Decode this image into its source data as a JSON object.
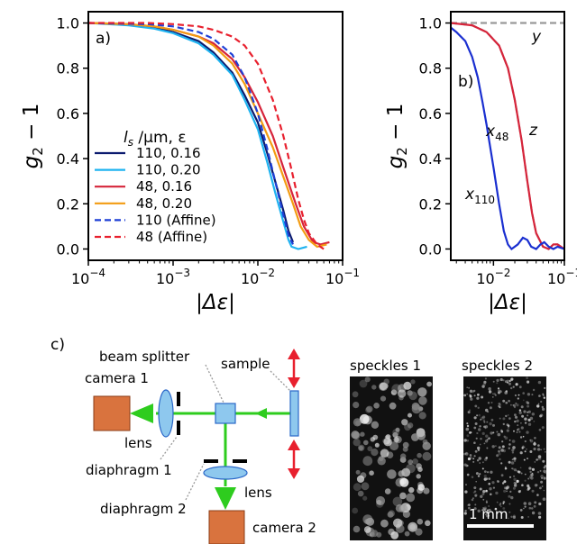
{
  "chart_data": [
    {
      "panel": "a)",
      "type": "line",
      "ylabel_main": "g",
      "ylabel_sub": "2",
      "ylabel_tail": " − 1",
      "xlabel": "|Δε|",
      "xscale": "log",
      "xlim": [
        0.0001,
        0.1
      ],
      "ylim": [
        -0.05,
        1.05
      ],
      "x_ticks": [
        {
          "value": 0.0001,
          "exp": "−4"
        },
        {
          "value": 0.001,
          "exp": "−3"
        },
        {
          "value": 0.01,
          "exp": "−2"
        },
        {
          "value": 0.1,
          "exp": "−1"
        }
      ],
      "x_tick_base": "10",
      "y_ticks": [
        "0.0",
        "0.2",
        "0.4",
        "0.6",
        "0.8",
        "1.0"
      ],
      "legend_title": "l",
      "legend_title_sub": "s",
      "legend_title_rest": " /μm, ε",
      "legend_position": "lower-left",
      "series": [
        {
          "name": "110, 0.16",
          "color": "#0b1a6e",
          "dash": false,
          "points": [
            [
              0.0001,
              1.0
            ],
            [
              0.0003,
              0.995
            ],
            [
              0.0006,
              0.98
            ],
            [
              0.001,
              0.96
            ],
            [
              0.002,
              0.92
            ],
            [
              0.003,
              0.87
            ],
            [
              0.005,
              0.78
            ],
            [
              0.007,
              0.68
            ],
            [
              0.01,
              0.56
            ],
            [
              0.013,
              0.42
            ],
            [
              0.016,
              0.3
            ],
            [
              0.02,
              0.17
            ],
            [
              0.023,
              0.08
            ],
            [
              0.026,
              0.03
            ]
          ]
        },
        {
          "name": "110, 0.20",
          "color": "#1fb3f0",
          "dash": false,
          "points": [
            [
              0.0001,
              1.0
            ],
            [
              0.0003,
              0.99
            ],
            [
              0.0006,
              0.975
            ],
            [
              0.001,
              0.955
            ],
            [
              0.002,
              0.91
            ],
            [
              0.003,
              0.86
            ],
            [
              0.005,
              0.77
            ],
            [
              0.007,
              0.66
            ],
            [
              0.01,
              0.53
            ],
            [
              0.013,
              0.38
            ],
            [
              0.016,
              0.25
            ],
            [
              0.02,
              0.12
            ],
            [
              0.023,
              0.04
            ],
            [
              0.025,
              0.01
            ],
            [
              0.03,
              0.0
            ],
            [
              0.038,
              0.01
            ]
          ]
        },
        {
          "name": "48, 0.16",
          "color": "#d6243a",
          "dash": false,
          "points": [
            [
              0.0001,
              1.0
            ],
            [
              0.0003,
              0.995
            ],
            [
              0.0006,
              0.985
            ],
            [
              0.001,
              0.97
            ],
            [
              0.002,
              0.94
            ],
            [
              0.003,
              0.91
            ],
            [
              0.005,
              0.84
            ],
            [
              0.007,
              0.76
            ],
            [
              0.01,
              0.65
            ],
            [
              0.015,
              0.5
            ],
            [
              0.02,
              0.36
            ],
            [
              0.028,
              0.2
            ],
            [
              0.035,
              0.1
            ],
            [
              0.045,
              0.03
            ],
            [
              0.055,
              0.02
            ],
            [
              0.07,
              0.03
            ]
          ]
        },
        {
          "name": "48, 0.20",
          "color": "#f39c12",
          "dash": false,
          "points": [
            [
              0.0001,
              1.0
            ],
            [
              0.0003,
              0.995
            ],
            [
              0.0006,
              0.985
            ],
            [
              0.001,
              0.97
            ],
            [
              0.002,
              0.94
            ],
            [
              0.003,
              0.9
            ],
            [
              0.005,
              0.82
            ],
            [
              0.007,
              0.73
            ],
            [
              0.01,
              0.6
            ],
            [
              0.015,
              0.45
            ],
            [
              0.02,
              0.32
            ],
            [
              0.026,
              0.2
            ],
            [
              0.032,
              0.1
            ],
            [
              0.04,
              0.04
            ],
            [
              0.05,
              0.01
            ],
            [
              0.065,
              0.02
            ]
          ]
        },
        {
          "name": "110 (Affine)",
          "color": "#1d3fd6",
          "dash": true,
          "points": [
            [
              0.0001,
              1.0
            ],
            [
              0.0005,
              0.995
            ],
            [
              0.001,
              0.985
            ],
            [
              0.002,
              0.96
            ],
            [
              0.003,
              0.93
            ],
            [
              0.005,
              0.86
            ],
            [
              0.007,
              0.76
            ],
            [
              0.01,
              0.6
            ],
            [
              0.013,
              0.44
            ],
            [
              0.016,
              0.3
            ],
            [
              0.02,
              0.15
            ],
            [
              0.023,
              0.06
            ],
            [
              0.026,
              0.02
            ]
          ]
        },
        {
          "name": "48 (Affine)",
          "color": "#e8202e",
          "dash": true,
          "points": [
            [
              0.0001,
              1.0
            ],
            [
              0.0005,
              1.0
            ],
            [
              0.001,
              0.995
            ],
            [
              0.002,
              0.985
            ],
            [
              0.003,
              0.97
            ],
            [
              0.005,
              0.94
            ],
            [
              0.007,
              0.9
            ],
            [
              0.01,
              0.82
            ],
            [
              0.015,
              0.66
            ],
            [
              0.02,
              0.5
            ],
            [
              0.025,
              0.35
            ],
            [
              0.03,
              0.22
            ],
            [
              0.035,
              0.13
            ],
            [
              0.04,
              0.07
            ],
            [
              0.05,
              0.02
            ],
            [
              0.06,
              0.0
            ]
          ]
        }
      ]
    },
    {
      "panel": "b)",
      "type": "line",
      "ylabel_main": "g",
      "ylabel_sub": "2",
      "ylabel_tail": " − 1",
      "xlabel": "|Δε|",
      "xscale": "log",
      "xlim": [
        0.0025,
        0.1
      ],
      "ylim": [
        -0.05,
        1.05
      ],
      "x_ticks": [
        {
          "value": 0.01,
          "exp": "−2"
        },
        {
          "value": 0.1,
          "exp": "−1"
        }
      ],
      "x_tick_base": "10",
      "y_ticks": [
        "0.0",
        "0.2",
        "0.4",
        "0.6",
        "0.8",
        "1.0"
      ],
      "series": [
        {
          "name_main": "y",
          "name_sub": "",
          "color": "#999999",
          "dash": true,
          "points": [
            [
              0.0025,
              1.0
            ],
            [
              0.1,
              1.0
            ]
          ]
        },
        {
          "name_main": "z",
          "name_sub": "",
          "color": "#999999",
          "dash": true,
          "points": [
            [
              0.0025,
              1.0
            ],
            [
              0.005,
              0.99
            ],
            [
              0.008,
              0.96
            ],
            [
              0.012,
              0.9
            ],
            [
              0.016,
              0.8
            ],
            [
              0.02,
              0.66
            ],
            [
              0.025,
              0.48
            ],
            [
              0.03,
              0.3
            ],
            [
              0.035,
              0.16
            ],
            [
              0.04,
              0.07
            ],
            [
              0.05,
              0.01
            ],
            [
              0.06,
              0.0
            ],
            [
              0.07,
              0.02
            ],
            [
              0.08,
              0.02
            ],
            [
              0.1,
              0.0
            ]
          ]
        },
        {
          "name_main": "x",
          "name_sub": "48",
          "color": "#d6243a",
          "dash": false,
          "points": [
            [
              0.0025,
              1.0
            ],
            [
              0.005,
              0.99
            ],
            [
              0.008,
              0.96
            ],
            [
              0.012,
              0.9
            ],
            [
              0.016,
              0.8
            ],
            [
              0.02,
              0.66
            ],
            [
              0.025,
              0.48
            ],
            [
              0.03,
              0.3
            ],
            [
              0.035,
              0.16
            ],
            [
              0.04,
              0.07
            ],
            [
              0.05,
              0.01
            ],
            [
              0.06,
              0.0
            ],
            [
              0.07,
              0.02
            ],
            [
              0.08,
              0.02
            ],
            [
              0.1,
              0.0
            ]
          ]
        },
        {
          "name_main": "x",
          "name_sub": "110",
          "color": "#1a2fd0",
          "dash": false,
          "points": [
            [
              0.0025,
              0.98
            ],
            [
              0.003,
              0.96
            ],
            [
              0.004,
              0.92
            ],
            [
              0.005,
              0.85
            ],
            [
              0.006,
              0.76
            ],
            [
              0.007,
              0.65
            ],
            [
              0.008,
              0.55
            ],
            [
              0.01,
              0.36
            ],
            [
              0.012,
              0.2
            ],
            [
              0.014,
              0.08
            ],
            [
              0.016,
              0.02
            ],
            [
              0.018,
              0.0
            ],
            [
              0.022,
              0.02
            ],
            [
              0.026,
              0.05
            ],
            [
              0.03,
              0.04
            ],
            [
              0.034,
              0.01
            ],
            [
              0.04,
              0.0
            ],
            [
              0.046,
              0.02
            ],
            [
              0.052,
              0.03
            ],
            [
              0.06,
              0.01
            ],
            [
              0.07,
              0.0
            ],
            [
              0.08,
              0.01
            ],
            [
              0.1,
              0.0
            ]
          ]
        }
      ]
    }
  ],
  "panel_c": {
    "label": "c)",
    "labels": {
      "beam_splitter": "beam splitter",
      "sample": "sample",
      "camera1": "camera 1",
      "camera2": "camera 2",
      "lens1": "lens",
      "lens2": "lens",
      "diaphragm1": "diaphragm 1",
      "diaphragm2": "diaphragm 2",
      "speckles1": "speckles 1",
      "speckles2": "speckles 2",
      "scale_bar": "1 mm"
    },
    "colors": {
      "camera": "#d9733e",
      "optics": "#8ec8ee",
      "beam": "#2ecc1e",
      "arrow": "#e8202e"
    }
  }
}
